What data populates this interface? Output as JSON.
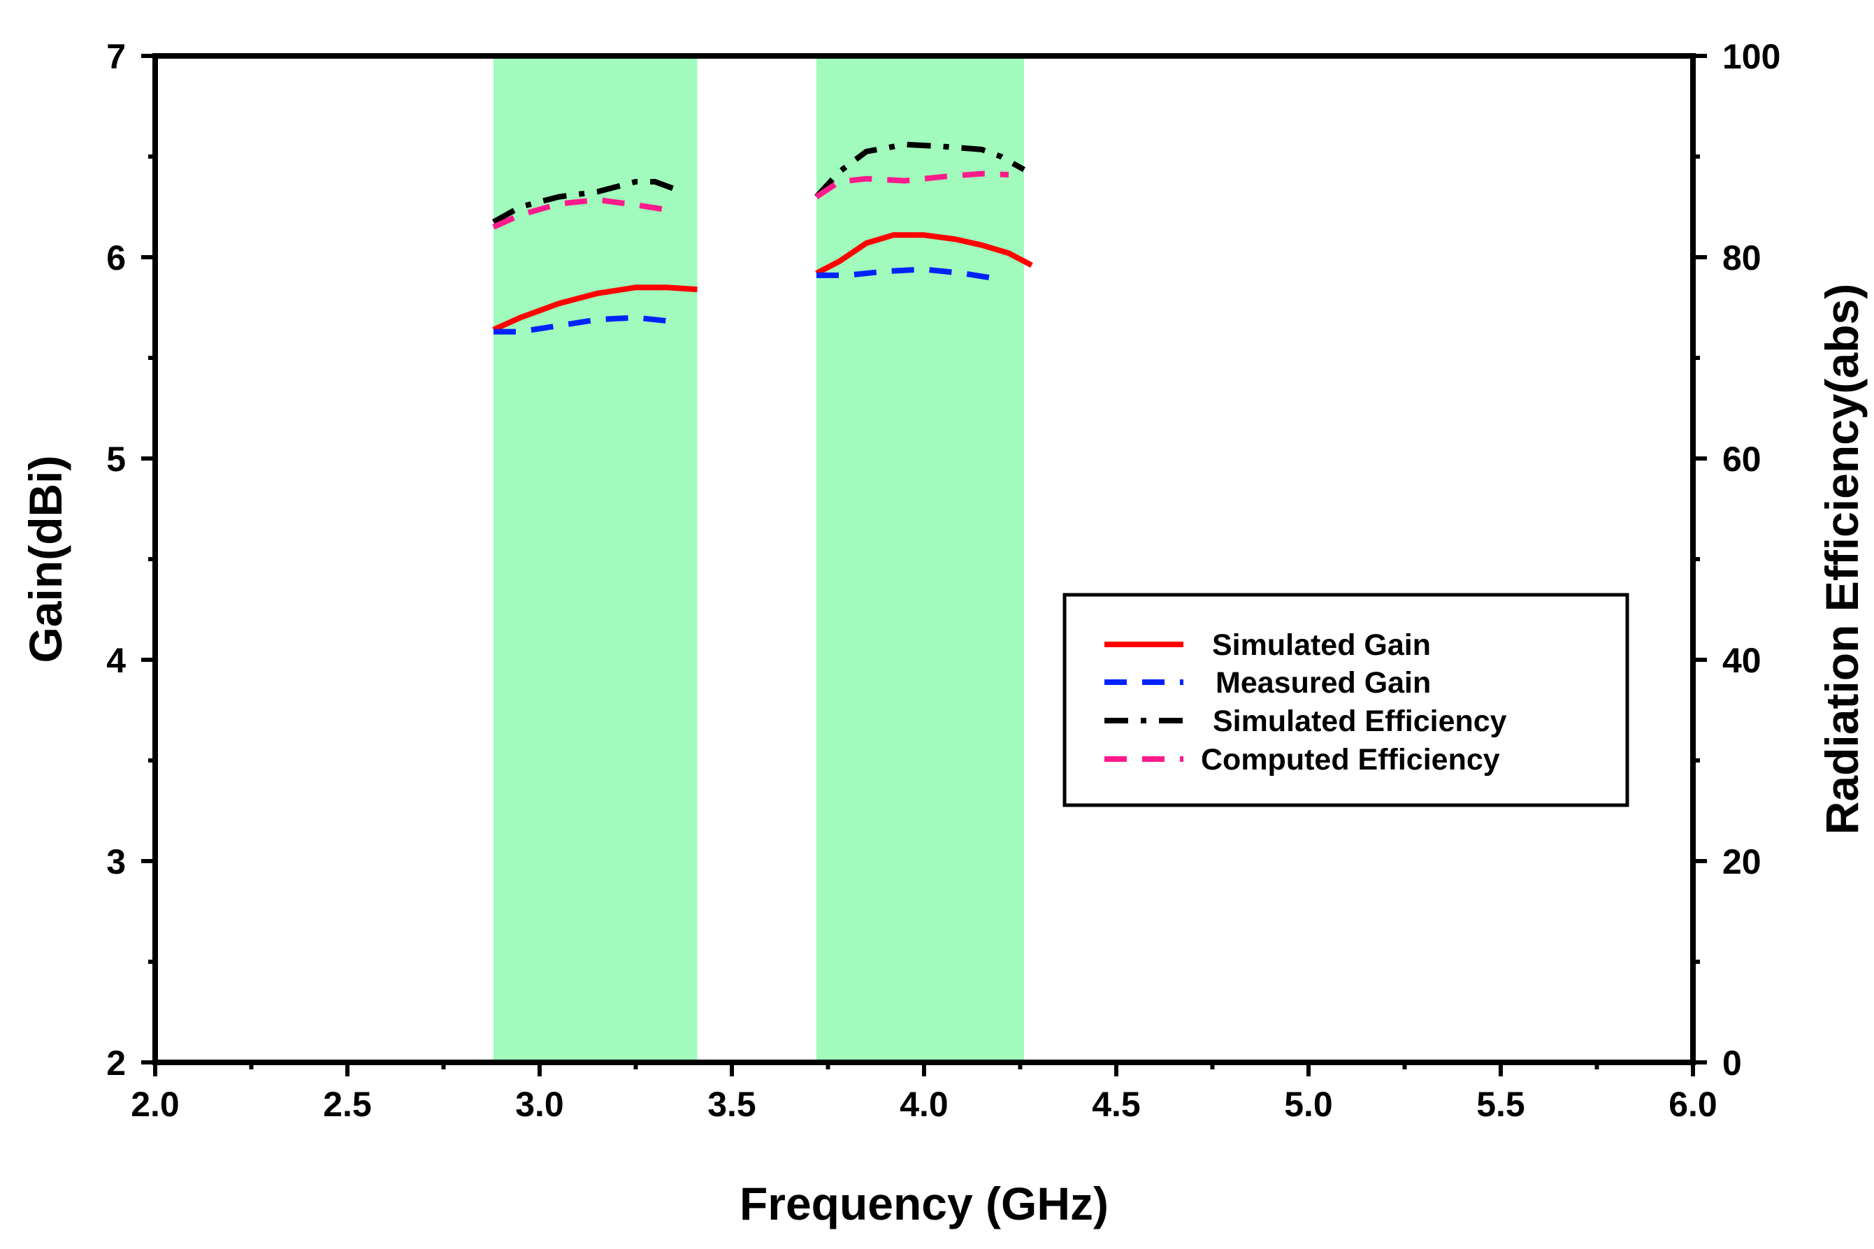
{
  "chart_data": {
    "type": "line",
    "title": "",
    "xlabel": "Frequency (GHz)",
    "ylabel": "Gain(dBi)",
    "y2label": "Radiation Efficiency(abs)",
    "xlim": [
      2.0,
      6.0
    ],
    "ylim": [
      2,
      7
    ],
    "y2lim": [
      0,
      100
    ],
    "x_ticks": [
      "2.0",
      "2.5",
      "3.0",
      "3.5",
      "4.0",
      "4.5",
      "5.0",
      "5.5",
      "6.0"
    ],
    "y_ticks": [
      "2",
      "3",
      "4",
      "5",
      "6",
      "7"
    ],
    "y2_ticks": [
      "0",
      "20",
      "40",
      "60",
      "80",
      "100"
    ],
    "grid": false,
    "legend_position": "right-middle",
    "bands": [
      {
        "x_start": 2.88,
        "x_end": 3.41,
        "color": "#a0fbbc"
      },
      {
        "x_start": 3.72,
        "x_end": 4.26,
        "color": "#a0fbbc"
      }
    ],
    "series": [
      {
        "name": "Simulated Gain",
        "axis": "left",
        "color": "#ff0000",
        "dash": "solid",
        "segments": [
          {
            "x": [
              2.88,
              2.95,
              3.05,
              3.15,
              3.25,
              3.33,
              3.41
            ],
            "y": [
              5.64,
              5.7,
              5.77,
              5.82,
              5.85,
              5.85,
              5.84
            ]
          },
          {
            "x": [
              3.72,
              3.78,
              3.85,
              3.92,
              4.0,
              4.08,
              4.15,
              4.22,
              4.28
            ],
            "y": [
              5.92,
              5.98,
              6.07,
              6.11,
              6.11,
              6.09,
              6.06,
              6.02,
              5.96
            ]
          }
        ]
      },
      {
        "name": "Measured Gain",
        "axis": "left",
        "color": "#0022ff",
        "dash": "dash",
        "segments": [
          {
            "x": [
              2.88,
              2.95,
              3.05,
              3.15,
              3.25,
              3.35
            ],
            "y": [
              5.63,
              5.63,
              5.66,
              5.69,
              5.7,
              5.68
            ]
          },
          {
            "x": [
              3.72,
              3.8,
              3.9,
              4.0,
              4.1,
              4.2
            ],
            "y": [
              5.91,
              5.91,
              5.93,
              5.94,
              5.92,
              5.89
            ]
          }
        ]
      },
      {
        "name": "Simulated Efficiency",
        "axis": "right",
        "color": "#000000",
        "dash": "dashdot",
        "segments": [
          {
            "x": [
              2.88,
              2.95,
              3.05,
              3.15,
              3.25,
              3.3,
              3.35
            ],
            "y": [
              83.5,
              85.0,
              86.0,
              86.5,
              87.5,
              87.5,
              86.8
            ]
          },
          {
            "x": [
              3.72,
              3.78,
              3.85,
              3.95,
              4.05,
              4.15,
              4.2,
              4.26
            ],
            "y": [
              86.0,
              88.5,
              90.5,
              91.2,
              91.0,
              90.7,
              90.0,
              88.7
            ]
          }
        ]
      },
      {
        "name": "Computed Efficiency",
        "axis": "right",
        "color": "#ff1a8c",
        "dash": "dash",
        "segments": [
          {
            "x": [
              2.88,
              2.95,
              3.05,
              3.15,
              3.25,
              3.35
            ],
            "y": [
              83.0,
              84.2,
              85.3,
              85.7,
              85.2,
              84.6
            ]
          },
          {
            "x": [
              3.72,
              3.78,
              3.85,
              3.95,
              4.05,
              4.15,
              4.22
            ],
            "y": [
              86.0,
              87.5,
              87.8,
              87.6,
              88.0,
              88.3,
              88.2
            ]
          }
        ]
      }
    ]
  }
}
